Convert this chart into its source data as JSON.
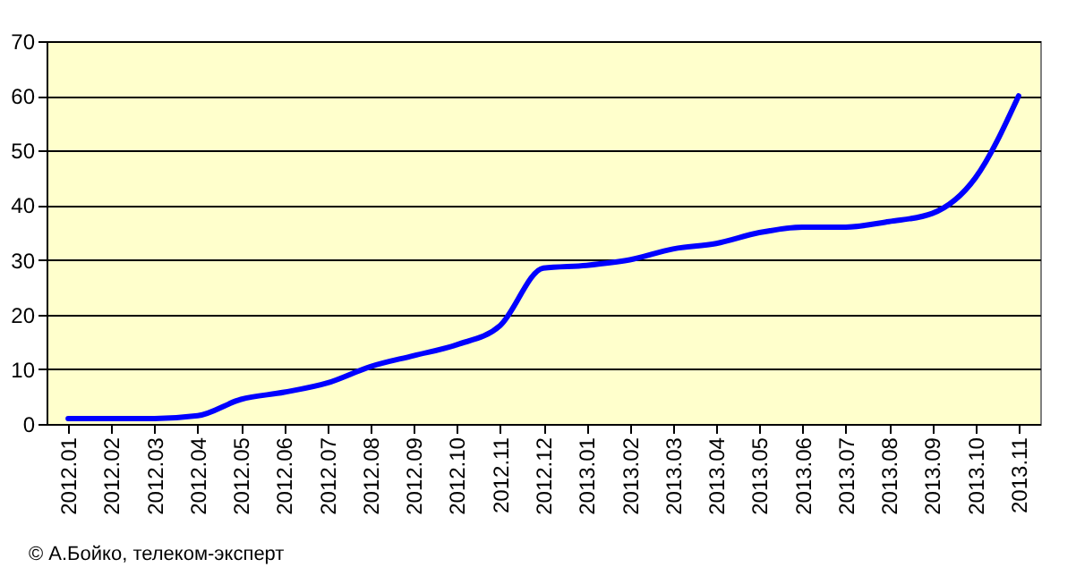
{
  "chart_data": {
    "type": "line",
    "categories": [
      "2012.01",
      "2012.02",
      "2012.03",
      "2012.04",
      "2012.05",
      "2012.06",
      "2012.07",
      "2012.08",
      "2012.09",
      "2012.10",
      "2012.11",
      "2012.12",
      "2013.01",
      "2013.02",
      "2013.03",
      "2013.04",
      "2013.05",
      "2013.06",
      "2013.07",
      "2013.08",
      "2013.09",
      "2013.10",
      "2013.11"
    ],
    "series": [
      {
        "color": "#0000ff",
        "values": [
          1,
          1,
          1,
          1.5,
          4.5,
          5.8,
          7.5,
          10.5,
          12.5,
          14.5,
          18,
          28.5,
          29,
          30,
          32,
          33,
          35,
          36,
          36,
          37,
          38.5,
          45,
          60
        ]
      }
    ],
    "ylim": [
      0,
      70
    ],
    "yticks": [
      0,
      10,
      20,
      30,
      40,
      50,
      60,
      70
    ],
    "grid": "y",
    "marker": "none",
    "line_style": "solid",
    "annotations": [
      "© А.Бойко, телеком-эксперт"
    ]
  }
}
